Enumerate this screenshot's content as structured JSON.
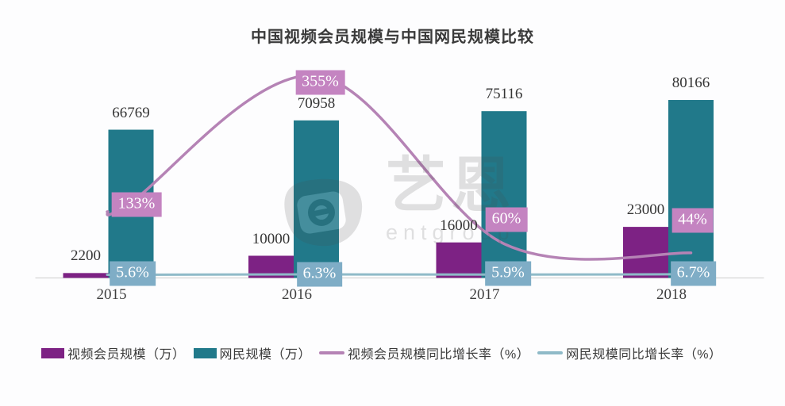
{
  "title": "中国视频会员规模与中国网民规模比较",
  "watermark": {
    "brand_cn": "艺恩",
    "brand_en": "entgroup"
  },
  "colors": {
    "video_bar": "#7d2284",
    "netizen_bar": "#21798a",
    "video_growth_line": "#b583b5",
    "video_growth_label_bg": "#c484c1",
    "netizen_growth_line": "#8fbac8",
    "netizen_growth_label_bg": "#7fadc6",
    "axis_line": "#d6d6d6",
    "text": "#3a3a3a"
  },
  "chart_data": {
    "type": "bar+line combo",
    "title": "中国视频会员规模与中国网民规模比较",
    "categories": [
      "2015",
      "2016",
      "2017",
      "2018"
    ],
    "series": [
      {
        "name": "视频会员规模（万）",
        "type": "bar",
        "color": "#7d2284",
        "values": [
          2200,
          10000,
          16000,
          23000
        ],
        "labels": [
          "2200",
          "10000",
          "16000",
          "23000"
        ]
      },
      {
        "name": "网民规模（万）",
        "type": "bar",
        "color": "#21798a",
        "values": [
          66769,
          70958,
          75116,
          80166
        ],
        "labels": [
          "66769",
          "70958",
          "75116",
          "80166"
        ]
      },
      {
        "name": "视频会员规模同比增长率（%）",
        "type": "line",
        "color": "#b583b5",
        "label_bg": "#c484c1",
        "values": [
          133,
          355,
          60,
          44
        ],
        "labels": [
          "133%",
          "355%",
          "60%",
          "44%"
        ]
      },
      {
        "name": "网民规模同比增长率（%）",
        "type": "line",
        "color": "#8fbac8",
        "label_bg": "#7fadc6",
        "values": [
          5.6,
          6.3,
          5.9,
          6.7
        ],
        "labels": [
          "5.6%",
          "6.3%",
          "5.9%",
          "6.7%"
        ]
      }
    ],
    "legend_position": "bottom",
    "grid": false,
    "axes_note": "axes hidden, only gray baseline shown; values displayed as data labels"
  }
}
